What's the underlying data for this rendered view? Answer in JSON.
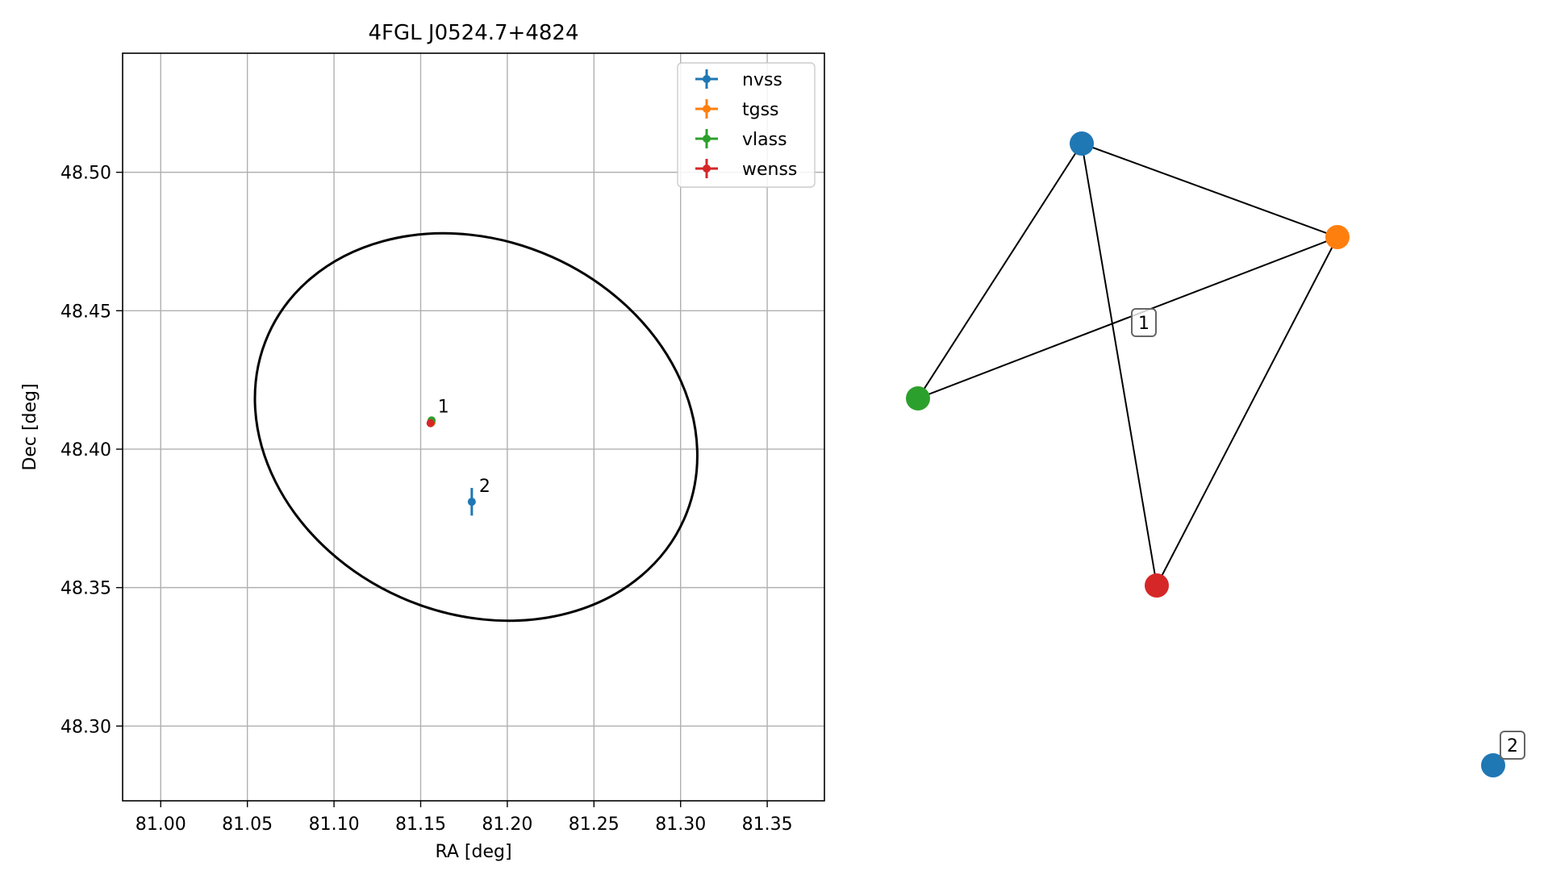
{
  "chart_data": [
    {
      "type": "scatter",
      "title": "4FGL J0524.7+4824",
      "xlabel": "RA [deg]",
      "ylabel": "Dec [deg]",
      "xlim": [
        80.978,
        81.383
      ],
      "ylim": [
        48.273,
        48.543
      ],
      "xticks": [
        81.0,
        81.05,
        81.1,
        81.15,
        81.2,
        81.25,
        81.3,
        81.35
      ],
      "xtick_labels": [
        "81.00",
        "81.05",
        "81.10",
        "81.15",
        "81.20",
        "81.25",
        "81.30",
        "81.35"
      ],
      "yticks": [
        48.3,
        48.35,
        48.4,
        48.45,
        48.5
      ],
      "ytick_labels": [
        "48.30",
        "48.35",
        "48.40",
        "48.45",
        "48.50"
      ],
      "grid": true,
      "legend_position": "upper-right",
      "series": [
        {
          "name": "nvss",
          "color": "#1f77b4",
          "points": [
            {
              "x": 81.1795,
              "y": 48.381,
              "yerr": 0.005,
              "xerr": 0.0008
            }
          ]
        },
        {
          "name": "tgss",
          "color": "#ff7f0e",
          "points": [
            {
              "x": 81.1563,
              "y": 48.4097,
              "yerr": 0.0006,
              "xerr": 0.0006
            }
          ]
        },
        {
          "name": "vlass",
          "color": "#2ca02c",
          "points": [
            {
              "x": 81.1563,
              "y": 48.4104,
              "yerr": 0.0003,
              "xerr": 0.0003
            }
          ]
        },
        {
          "name": "wenss",
          "color": "#d62728",
          "points": [
            {
              "x": 81.1557,
              "y": 48.4094,
              "yerr": 0.0008,
              "xerr": 0.0008
            }
          ]
        }
      ],
      "point_labels": [
        {
          "text": "1",
          "x": 81.1557,
          "y": 48.4097
        },
        {
          "text": "2",
          "x": 81.1795,
          "y": 48.381
        }
      ],
      "ellipse": {
        "center_x": 81.182,
        "center_y": 48.408,
        "color": "#000000"
      }
    },
    {
      "type": "network",
      "nodes": [
        {
          "id": "nvss",
          "color": "#1f77b4",
          "group": "1"
        },
        {
          "id": "tgss",
          "color": "#ff7f0e",
          "group": "1"
        },
        {
          "id": "vlass",
          "color": "#2ca02c",
          "group": "1"
        },
        {
          "id": "wenss",
          "color": "#d62728",
          "group": "1"
        },
        {
          "id": "nvss-2",
          "color": "#1f77b4",
          "group": "2"
        }
      ],
      "edges": [
        [
          "nvss",
          "tgss"
        ],
        [
          "nvss",
          "vlass"
        ],
        [
          "nvss",
          "wenss"
        ],
        [
          "tgss",
          "vlass"
        ],
        [
          "tgss",
          "wenss"
        ]
      ],
      "group_labels": [
        "1",
        "2"
      ]
    }
  ]
}
